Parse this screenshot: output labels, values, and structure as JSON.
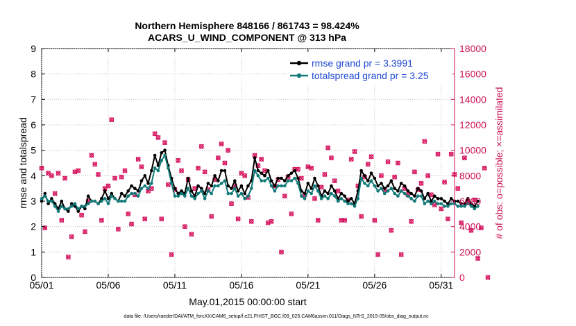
{
  "chart_data": {
    "type": "line",
    "title": "Northern Hemisphere 848166 / 861743 = 98.424%",
    "subtitle": "ACARS_U_WIND_COMPONENT @ 313 hPa",
    "xlabel": "May.01,2015 00:00:00 start",
    "ylabel": "rmse and totalspread",
    "y2label": "# of obs: o=possible; ×=assimilated",
    "footnote": "data file: /Users/raeder/DAI/ATM_forcXX/CAM6_setup/f.e21.FHIST_BGC.f09_025.CAM6assim.011/Diags_NTrS_2015-05/obs_diag_output.nc",
    "xlim": [
      0,
      31
    ],
    "ylim": [
      0,
      9
    ],
    "y2lim": [
      0,
      18000
    ],
    "xticks": [
      0,
      5,
      10,
      15,
      20,
      25,
      30
    ],
    "xtick_labels": [
      "05/01",
      "05/06",
      "05/11",
      "05/16",
      "05/21",
      "05/26",
      "05/31"
    ],
    "yticks": [
      0,
      1,
      2,
      3,
      4,
      5,
      6,
      7,
      8,
      9
    ],
    "ytick_labels": [
      "0",
      "1",
      "2",
      "3",
      "4",
      "5",
      "6",
      "7",
      "8",
      "9"
    ],
    "y2ticks": [
      0,
      2000,
      4000,
      6000,
      8000,
      10000,
      12000,
      14000,
      16000,
      18000
    ],
    "y2tick_labels": [
      "0",
      "2000",
      "4000",
      "6000",
      "8000",
      "10000",
      "12000",
      "14000",
      "16000",
      "18000"
    ],
    "legend_position": "top-right",
    "x_step_days": 0.25,
    "series": [
      {
        "name": "rmse grand pr = 3.3991",
        "color": "#000000",
        "values": [
          3.0,
          3.3,
          2.9,
          3.1,
          2.9,
          2.7,
          3.0,
          2.7,
          2.6,
          2.9,
          2.8,
          2.6,
          2.8,
          2.7,
          3.2,
          3.0,
          3.0,
          2.9,
          3.1,
          3.4,
          3.1,
          3.3,
          3.1,
          3.0,
          3.3,
          3.2,
          3.4,
          3.6,
          3.5,
          3.4,
          3.8,
          4.0,
          3.7,
          4.2,
          4.8,
          4.4,
          4.9,
          5.0,
          4.4,
          3.9,
          3.5,
          3.3,
          3.4,
          3.3,
          3.9,
          3.4,
          3.2,
          3.6,
          3.5,
          3.3,
          3.7,
          3.6,
          4.0,
          3.8,
          4.2,
          4.2,
          3.6,
          3.5,
          3.8,
          3.4,
          3.6,
          3.3,
          3.6,
          3.8,
          4.7,
          4.2,
          4.1,
          4.0,
          4.2,
          3.8,
          3.6,
          3.9,
          3.9,
          3.8,
          4.0,
          4.1,
          4.2,
          3.9,
          3.4,
          3.3,
          3.7,
          3.5,
          3.9,
          3.6,
          3.2,
          3.4,
          3.3,
          3.6,
          3.4,
          3.1,
          3.3,
          3.2,
          3.0,
          3.1,
          2.9,
          3.4,
          4.2,
          4.0,
          3.8,
          4.1,
          3.9,
          3.6,
          3.7,
          3.5,
          3.6,
          3.8,
          3.5,
          3.4,
          3.7,
          3.6,
          3.4,
          3.3,
          3.2,
          3.5,
          3.4,
          3.1,
          3.3,
          3.0,
          3.2,
          3.1,
          3.1,
          3.0,
          2.9,
          3.1,
          3.0,
          3.0,
          2.9,
          2.9,
          3.1,
          2.9,
          2.8,
          3.0
        ]
      },
      {
        "name": "totalspread grand pr = 3.25",
        "color": "#117a78",
        "values": [
          3.1,
          3.2,
          3.0,
          3.0,
          2.8,
          2.6,
          2.8,
          2.7,
          2.7,
          2.8,
          2.9,
          2.7,
          2.8,
          2.8,
          2.9,
          3.0,
          3.0,
          2.9,
          3.0,
          3.1,
          2.9,
          3.2,
          3.1,
          3.0,
          3.0,
          3.0,
          3.2,
          3.3,
          3.3,
          3.2,
          3.5,
          3.6,
          3.5,
          3.7,
          4.3,
          4.2,
          4.6,
          4.8,
          4.3,
          3.7,
          3.2,
          3.2,
          3.3,
          3.2,
          3.5,
          3.2,
          3.1,
          3.3,
          3.4,
          3.1,
          3.4,
          3.3,
          3.6,
          3.6,
          3.7,
          3.8,
          3.3,
          3.3,
          3.5,
          3.2,
          3.3,
          3.1,
          3.2,
          3.5,
          4.2,
          4.0,
          3.8,
          3.8,
          3.9,
          3.6,
          3.4,
          3.6,
          3.6,
          3.6,
          3.8,
          3.8,
          3.9,
          3.7,
          3.2,
          3.1,
          3.4,
          3.3,
          3.6,
          3.4,
          3.1,
          3.2,
          3.1,
          3.3,
          3.2,
          3.0,
          3.1,
          3.0,
          2.9,
          2.9,
          2.8,
          3.1,
          3.9,
          3.7,
          3.6,
          3.8,
          3.6,
          3.4,
          3.5,
          3.3,
          3.4,
          3.5,
          3.3,
          3.2,
          3.4,
          3.3,
          3.2,
          3.1,
          3.0,
          3.2,
          3.2,
          2.9,
          3.0,
          2.9,
          3.0,
          2.9,
          2.9,
          2.8,
          2.8,
          2.9,
          2.9,
          2.8,
          2.8,
          2.8,
          2.9,
          2.8,
          2.7,
          2.8
        ]
      }
    ],
    "obs_series": {
      "name": "# of obs (possible / assimilated)",
      "color": "#d6145f",
      "values": [
        8600,
        3900,
        8200,
        8000,
        6600,
        8200,
        4500,
        7800,
        1600,
        3200,
        8300,
        8400,
        4900,
        3600,
        6000,
        9600,
        8900,
        8100,
        4500,
        7000,
        7200,
        12400,
        7800,
        3800,
        7900,
        8400,
        5000,
        4200,
        6500,
        9300,
        8700,
        4600,
        6800,
        7000,
        11300,
        11000,
        4600,
        10600,
        7300,
        1800,
        6900,
        9200,
        8400,
        4000,
        7700,
        3400,
        7000,
        8600,
        10300,
        8300,
        6900,
        4800,
        7700,
        9400,
        10500,
        9000,
        10000,
        5800,
        7200,
        4600,
        8200,
        8000,
        6300,
        4400,
        9600,
        8800,
        9300,
        8400,
        4300,
        4400,
        7200,
        7700,
        2000,
        6400,
        7900,
        5000,
        8500,
        8500,
        7800,
        6500,
        8700,
        8600,
        6200,
        4500,
        7100,
        8100,
        10200,
        9400,
        7600,
        6800,
        4500,
        4500,
        6100,
        9300,
        9900,
        7200,
        4800,
        7900,
        8900,
        9500,
        4500,
        1800,
        8000,
        6900,
        9100,
        3700,
        7900,
        9000,
        1800,
        7000,
        6500,
        4400,
        8300,
        6900,
        7400,
        10700,
        8000,
        6500,
        5700,
        9700,
        5400,
        7500,
        4600,
        9700,
        8100,
        7000,
        4300,
        9400,
        6000,
        3700,
        6100,
        1500,
        3900,
        8600,
        0
      ]
    }
  }
}
